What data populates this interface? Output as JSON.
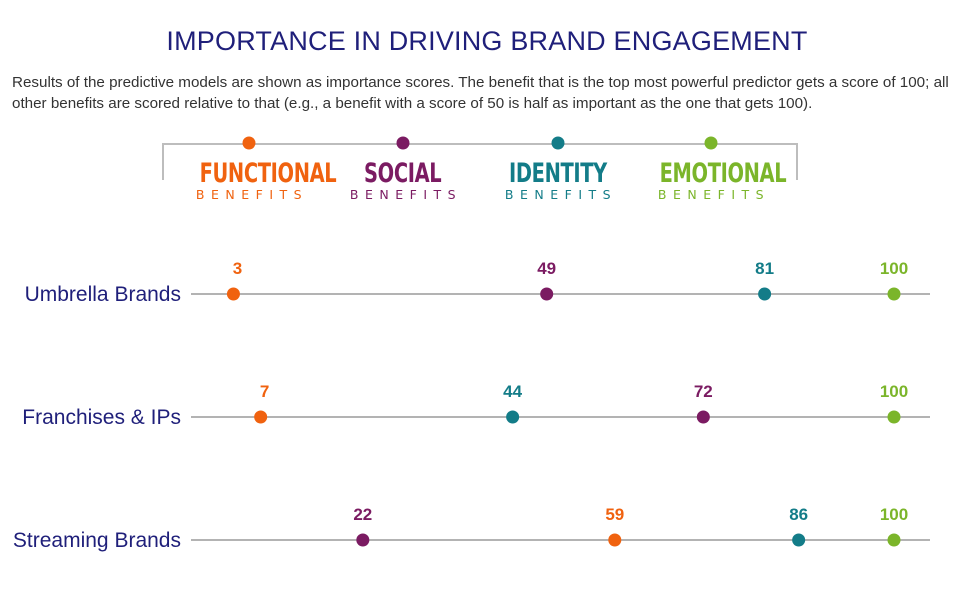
{
  "title": "IMPORTANCE IN DRIVING BRAND ENGAGEMENT",
  "subtitle": "Results of the predictive models are shown as importance scores. The benefit that is the top most powerful predictor gets a score of 100; all other benefits are scored relative to that (e.g., a benefit with a score of 50 is half as important as the one that gets 100).",
  "legend": [
    {
      "key": "functional",
      "word": "FUNCTIONAL",
      "sub": "BENEFITS",
      "color": "#f0620f"
    },
    {
      "key": "social",
      "word": "SOCIAL",
      "sub": "BENEFITS",
      "color": "#7b1b62"
    },
    {
      "key": "identity",
      "word": "IDENTITY",
      "sub": "BENEFITS",
      "color": "#137c88"
    },
    {
      "key": "emotional",
      "word": "EMOTIONAL",
      "sub": "BENEFITS",
      "color": "#7bb52a"
    }
  ],
  "chart_data": {
    "type": "scatter",
    "title": "IMPORTANCE IN DRIVING BRAND ENGAGEMENT",
    "xlim": [
      0,
      100
    ],
    "categories": [
      "Umbrella Brands",
      "Franchises & IPs",
      "Streaming Brands"
    ],
    "series": [
      {
        "name": "FUNCTIONAL BENEFITS",
        "color": "#f0620f",
        "values": [
          3,
          7,
          59
        ]
      },
      {
        "name": "SOCIAL BENEFITS",
        "color": "#7b1b62",
        "values": [
          49,
          72,
          22
        ]
      },
      {
        "name": "IDENTITY BENEFITS",
        "color": "#137c88",
        "values": [
          81,
          44,
          86
        ]
      },
      {
        "name": "EMOTIONAL BENEFITS",
        "color": "#7bb52a",
        "values": [
          100,
          100,
          100
        ]
      }
    ],
    "row_label_color": "#1f1f7a",
    "axis_line_color": "#9a9a9a"
  }
}
